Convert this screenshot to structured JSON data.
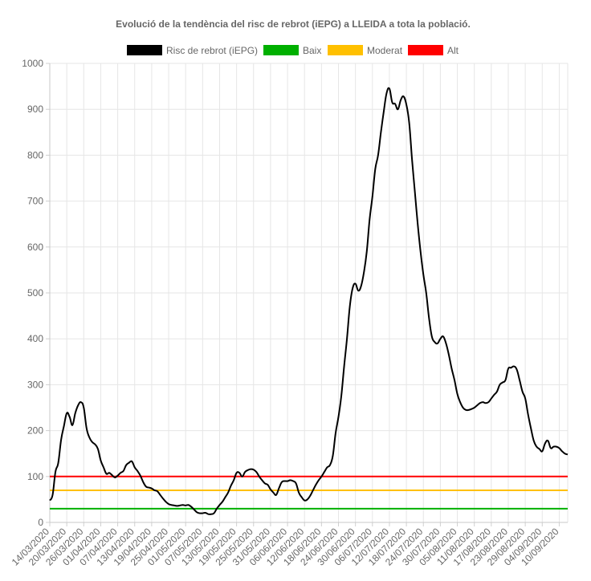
{
  "chart_data": {
    "type": "line",
    "title": "Evolució de la tendència del risc de rebrot (iEPG) a LLEIDA a tota la població.",
    "xlabel": "",
    "ylabel": "",
    "ylim": [
      0,
      1000
    ],
    "yticks": [
      0,
      100,
      200,
      300,
      400,
      500,
      600,
      700,
      800,
      900,
      1000
    ],
    "x_tick_labels": [
      "14/03/2020",
      "20/03/2020",
      "26/03/2020",
      "01/04/2020",
      "07/04/2020",
      "13/04/2020",
      "19/04/2020",
      "25/04/2020",
      "01/05/2020",
      "07/05/2020",
      "13/05/2020",
      "19/05/2020",
      "25/05/2020",
      "31/05/2020",
      "06/06/2020",
      "12/06/2020",
      "18/06/2020",
      "24/06/2020",
      "30/06/2020",
      "06/07/2020",
      "12/07/2020",
      "18/07/2020",
      "24/07/2020",
      "30/07/2020",
      "05/08/2020",
      "11/08/2020",
      "17/08/2020",
      "23/08/2020",
      "29/08/2020",
      "04/09/2020",
      "10/09/2020"
    ],
    "grid": true,
    "legend_position": "top",
    "series": [
      {
        "name": "Risc de rebrot (iEPG)",
        "color": "#000000",
        "points": [
          [
            "14/03/2020",
            48
          ],
          [
            "15/03/2020",
            60
          ],
          [
            "16/03/2020",
            110
          ],
          [
            "17/03/2020",
            130
          ],
          [
            "18/03/2020",
            180
          ],
          [
            "19/03/2020",
            210
          ],
          [
            "20/03/2020",
            238
          ],
          [
            "21/03/2020",
            230
          ],
          [
            "22/03/2020",
            212
          ],
          [
            "23/03/2020",
            238
          ],
          [
            "24/03/2020",
            255
          ],
          [
            "25/03/2020",
            262
          ],
          [
            "26/03/2020",
            250
          ],
          [
            "27/03/2020",
            205
          ],
          [
            "28/03/2020",
            185
          ],
          [
            "29/03/2020",
            175
          ],
          [
            "30/03/2020",
            170
          ],
          [
            "31/03/2020",
            160
          ],
          [
            "01/04/2020",
            135
          ],
          [
            "02/04/2020",
            120
          ],
          [
            "03/04/2020",
            106
          ],
          [
            "04/04/2020",
            108
          ],
          [
            "05/04/2020",
            103
          ],
          [
            "06/04/2020",
            98
          ],
          [
            "07/04/2020",
            102
          ],
          [
            "08/04/2020",
            108
          ],
          [
            "09/04/2020",
            112
          ],
          [
            "10/04/2020",
            125
          ],
          [
            "11/04/2020",
            130
          ],
          [
            "12/04/2020",
            133
          ],
          [
            "13/04/2020",
            120
          ],
          [
            "14/04/2020",
            112
          ],
          [
            "15/04/2020",
            102
          ],
          [
            "16/04/2020",
            88
          ],
          [
            "17/04/2020",
            78
          ],
          [
            "18/04/2020",
            76
          ],
          [
            "19/04/2020",
            74
          ],
          [
            "20/04/2020",
            70
          ],
          [
            "21/04/2020",
            68
          ],
          [
            "22/04/2020",
            60
          ],
          [
            "23/04/2020",
            52
          ],
          [
            "24/04/2020",
            45
          ],
          [
            "25/04/2020",
            40
          ],
          [
            "26/04/2020",
            38
          ],
          [
            "27/04/2020",
            37
          ],
          [
            "28/04/2020",
            36
          ],
          [
            "29/04/2020",
            37
          ],
          [
            "30/04/2020",
            38
          ],
          [
            "01/05/2020",
            37
          ],
          [
            "02/05/2020",
            38
          ],
          [
            "03/05/2020",
            34
          ],
          [
            "04/05/2020",
            28
          ],
          [
            "05/05/2020",
            22
          ],
          [
            "06/05/2020",
            20
          ],
          [
            "07/05/2020",
            20
          ],
          [
            "08/05/2020",
            21
          ],
          [
            "09/05/2020",
            18
          ],
          [
            "10/05/2020",
            18
          ],
          [
            "11/05/2020",
            20
          ],
          [
            "12/05/2020",
            30
          ],
          [
            "13/05/2020",
            38
          ],
          [
            "14/05/2020",
            45
          ],
          [
            "15/05/2020",
            55
          ],
          [
            "16/05/2020",
            65
          ],
          [
            "17/05/2020",
            80
          ],
          [
            "18/05/2020",
            92
          ],
          [
            "19/05/2020",
            108
          ],
          [
            "20/05/2020",
            108
          ],
          [
            "21/05/2020",
            100
          ],
          [
            "22/05/2020",
            110
          ],
          [
            "23/05/2020",
            114
          ],
          [
            "24/05/2020",
            116
          ],
          [
            "25/05/2020",
            115
          ],
          [
            "26/05/2020",
            110
          ],
          [
            "27/05/2020",
            100
          ],
          [
            "28/05/2020",
            92
          ],
          [
            "29/05/2020",
            85
          ],
          [
            "30/05/2020",
            82
          ],
          [
            "31/05/2020",
            72
          ],
          [
            "01/06/2020",
            65
          ],
          [
            "02/06/2020",
            60
          ],
          [
            "03/06/2020",
            75
          ],
          [
            "04/06/2020",
            88
          ],
          [
            "05/06/2020",
            90
          ],
          [
            "06/06/2020",
            90
          ],
          [
            "07/06/2020",
            92
          ],
          [
            "08/06/2020",
            90
          ],
          [
            "09/06/2020",
            85
          ],
          [
            "10/06/2020",
            65
          ],
          [
            "11/06/2020",
            55
          ],
          [
            "12/06/2020",
            48
          ],
          [
            "13/06/2020",
            50
          ],
          [
            "14/06/2020",
            58
          ],
          [
            "15/06/2020",
            70
          ],
          [
            "16/06/2020",
            82
          ],
          [
            "17/06/2020",
            92
          ],
          [
            "18/06/2020",
            100
          ],
          [
            "19/06/2020",
            110
          ],
          [
            "20/06/2020",
            120
          ],
          [
            "21/06/2020",
            125
          ],
          [
            "22/06/2020",
            145
          ],
          [
            "23/06/2020",
            195
          ],
          [
            "24/06/2020",
            230
          ],
          [
            "25/06/2020",
            275
          ],
          [
            "26/06/2020",
            340
          ],
          [
            "27/06/2020",
            400
          ],
          [
            "28/06/2020",
            470
          ],
          [
            "29/06/2020",
            510
          ],
          [
            "30/06/2020",
            520
          ],
          [
            "01/07/2020",
            505
          ],
          [
            "02/07/2020",
            515
          ],
          [
            "03/07/2020",
            545
          ],
          [
            "04/07/2020",
            590
          ],
          [
            "05/07/2020",
            660
          ],
          [
            "06/07/2020",
            710
          ],
          [
            "07/07/2020",
            770
          ],
          [
            "08/07/2020",
            800
          ],
          [
            "09/07/2020",
            850
          ],
          [
            "10/07/2020",
            895
          ],
          [
            "11/07/2020",
            935
          ],
          [
            "12/07/2020",
            945
          ],
          [
            "13/07/2020",
            915
          ],
          [
            "14/07/2020",
            912
          ],
          [
            "15/07/2020",
            900
          ],
          [
            "16/07/2020",
            920
          ],
          [
            "17/07/2020",
            928
          ],
          [
            "18/07/2020",
            910
          ],
          [
            "19/07/2020",
            870
          ],
          [
            "20/07/2020",
            790
          ],
          [
            "21/07/2020",
            720
          ],
          [
            "22/07/2020",
            650
          ],
          [
            "23/07/2020",
            590
          ],
          [
            "24/07/2020",
            540
          ],
          [
            "25/07/2020",
            500
          ],
          [
            "26/07/2020",
            445
          ],
          [
            "27/07/2020",
            405
          ],
          [
            "28/07/2020",
            393
          ],
          [
            "29/07/2020",
            390
          ],
          [
            "30/07/2020",
            400
          ],
          [
            "31/07/2020",
            405
          ],
          [
            "01/08/2020",
            390
          ],
          [
            "02/08/2020",
            365
          ],
          [
            "03/08/2020",
            335
          ],
          [
            "04/08/2020",
            310
          ],
          [
            "05/08/2020",
            280
          ],
          [
            "06/08/2020",
            262
          ],
          [
            "07/08/2020",
            250
          ],
          [
            "08/08/2020",
            245
          ],
          [
            "09/08/2020",
            245
          ],
          [
            "10/08/2020",
            247
          ],
          [
            "11/08/2020",
            250
          ],
          [
            "12/08/2020",
            255
          ],
          [
            "13/08/2020",
            260
          ],
          [
            "14/08/2020",
            262
          ],
          [
            "15/08/2020",
            260
          ],
          [
            "16/08/2020",
            262
          ],
          [
            "17/08/2020",
            270
          ],
          [
            "18/08/2020",
            278
          ],
          [
            "19/08/2020",
            285
          ],
          [
            "20/08/2020",
            300
          ],
          [
            "21/08/2020",
            305
          ],
          [
            "22/08/2020",
            310
          ],
          [
            "23/08/2020",
            335
          ],
          [
            "24/08/2020",
            337
          ],
          [
            "25/08/2020",
            340
          ],
          [
            "26/08/2020",
            333
          ],
          [
            "27/08/2020",
            310
          ],
          [
            "28/08/2020",
            285
          ],
          [
            "29/08/2020",
            270
          ],
          [
            "30/08/2020",
            235
          ],
          [
            "31/08/2020",
            205
          ],
          [
            "01/09/2020",
            178
          ],
          [
            "02/09/2020",
            165
          ],
          [
            "03/09/2020",
            160
          ],
          [
            "04/09/2020",
            155
          ],
          [
            "05/09/2020",
            172
          ],
          [
            "06/09/2020",
            178
          ],
          [
            "07/09/2020",
            162
          ],
          [
            "08/09/2020",
            165
          ],
          [
            "09/09/2020",
            165
          ],
          [
            "10/09/2020",
            162
          ],
          [
            "11/09/2020",
            155
          ],
          [
            "12/09/2020",
            150
          ],
          [
            "13/09/2020",
            148
          ]
        ]
      },
      {
        "name": "Baix",
        "color": "#00b000",
        "points": [
          [
            "14/03/2020",
            30
          ],
          [
            "13/09/2020",
            30
          ]
        ]
      },
      {
        "name": "Moderat",
        "color": "#ffc000",
        "points": [
          [
            "14/03/2020",
            70
          ],
          [
            "13/09/2020",
            70
          ]
        ]
      },
      {
        "name": "Alt",
        "color": "#ff0000",
        "points": [
          [
            "14/03/2020",
            100
          ],
          [
            "13/09/2020",
            100
          ]
        ]
      }
    ]
  }
}
